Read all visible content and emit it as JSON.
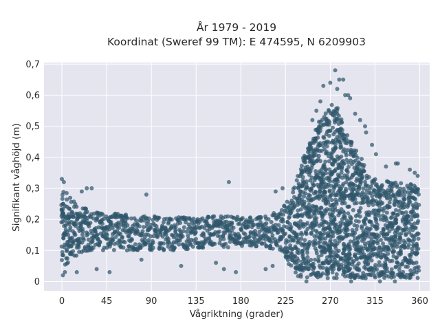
{
  "chart_data": {
    "type": "scatter",
    "title_line1": "År 1979 - 2019",
    "title_line2": "Koordinat (Sweref 99 TM): E 474595, N 6209903",
    "xlabel": "Vågriktning (grader)",
    "ylabel": "Signifikant våghöjd (m)",
    "xlim": [
      -18,
      370
    ],
    "ylim": [
      -0.03,
      0.705
    ],
    "xticks": [
      0,
      45,
      90,
      135,
      180,
      225,
      270,
      315,
      360
    ],
    "xtick_labels": [
      "0",
      "45",
      "90",
      "135",
      "180",
      "225",
      "270",
      "315",
      "360"
    ],
    "yticks": [
      0,
      0.1,
      0.2,
      0.3,
      0.4,
      0.5,
      0.6,
      0.7
    ],
    "ytick_labels": [
      "0",
      "0,1",
      "0,2",
      "0,3",
      "0,4",
      "0,5",
      "0,6",
      "0,7"
    ],
    "grid": true,
    "background": "#e5e5f0",
    "marker_color": "#2f566b",
    "envelope": {
      "x": [
        0,
        10,
        20,
        30,
        45,
        60,
        90,
        120,
        150,
        180,
        200,
        220,
        230,
        240,
        250,
        260,
        265,
        270,
        275,
        280,
        285,
        290,
        300,
        310,
        320,
        330,
        340,
        350,
        360
      ],
      "y_low": [
        0.04,
        0.07,
        0.09,
        0.1,
        0.1,
        0.1,
        0.1,
        0.1,
        0.11,
        0.11,
        0.11,
        0.1,
        0.05,
        0.01,
        0.01,
        0.01,
        0.01,
        0.01,
        0.01,
        0.01,
        0.01,
        0.01,
        0.01,
        0.01,
        0.01,
        0.01,
        0.01,
        0.01,
        0.01
      ],
      "y_high": [
        0.3,
        0.27,
        0.24,
        0.23,
        0.22,
        0.22,
        0.21,
        0.21,
        0.21,
        0.21,
        0.21,
        0.23,
        0.27,
        0.38,
        0.45,
        0.52,
        0.55,
        0.57,
        0.57,
        0.54,
        0.49,
        0.46,
        0.4,
        0.34,
        0.32,
        0.33,
        0.32,
        0.32,
        0.3
      ]
    },
    "outliers": [
      {
        "x": 0,
        "y": 0.33
      },
      {
        "x": 2,
        "y": 0.32
      },
      {
        "x": 1,
        "y": 0.02
      },
      {
        "x": 3,
        "y": 0.03
      },
      {
        "x": 25,
        "y": 0.3
      },
      {
        "x": 30,
        "y": 0.3
      },
      {
        "x": 20,
        "y": 0.29
      },
      {
        "x": 15,
        "y": 0.03
      },
      {
        "x": 35,
        "y": 0.04
      },
      {
        "x": 48,
        "y": 0.03
      },
      {
        "x": 85,
        "y": 0.28
      },
      {
        "x": 80,
        "y": 0.07
      },
      {
        "x": 120,
        "y": 0.05
      },
      {
        "x": 155,
        "y": 0.06
      },
      {
        "x": 168,
        "y": 0.32
      },
      {
        "x": 163,
        "y": 0.04
      },
      {
        "x": 175,
        "y": 0.03
      },
      {
        "x": 215,
        "y": 0.29
      },
      {
        "x": 222,
        "y": 0.3
      },
      {
        "x": 205,
        "y": 0.04
      },
      {
        "x": 212,
        "y": 0.05
      },
      {
        "x": 263,
        "y": 0.63
      },
      {
        "x": 270,
        "y": 0.64
      },
      {
        "x": 275,
        "y": 0.68
      },
      {
        "x": 279,
        "y": 0.65
      },
      {
        "x": 283,
        "y": 0.65
      },
      {
        "x": 277,
        "y": 0.62
      },
      {
        "x": 285,
        "y": 0.6
      },
      {
        "x": 288,
        "y": 0.6
      },
      {
        "x": 290,
        "y": 0.59
      },
      {
        "x": 260,
        "y": 0.58
      },
      {
        "x": 256,
        "y": 0.55
      },
      {
        "x": 252,
        "y": 0.52
      },
      {
        "x": 295,
        "y": 0.54
      },
      {
        "x": 300,
        "y": 0.52
      },
      {
        "x": 305,
        "y": 0.5
      },
      {
        "x": 306,
        "y": 0.48
      },
      {
        "x": 312,
        "y": 0.44
      },
      {
        "x": 316,
        "y": 0.41
      },
      {
        "x": 326,
        "y": 0.37
      },
      {
        "x": 336,
        "y": 0.38
      },
      {
        "x": 338,
        "y": 0.38
      },
      {
        "x": 350,
        "y": 0.36
      },
      {
        "x": 355,
        "y": 0.35
      },
      {
        "x": 358,
        "y": 0.34
      },
      {
        "x": 291,
        "y": 0.0
      },
      {
        "x": 320,
        "y": 0.0
      },
      {
        "x": 335,
        "y": 0.0
      },
      {
        "x": 246,
        "y": 0.0
      }
    ]
  }
}
